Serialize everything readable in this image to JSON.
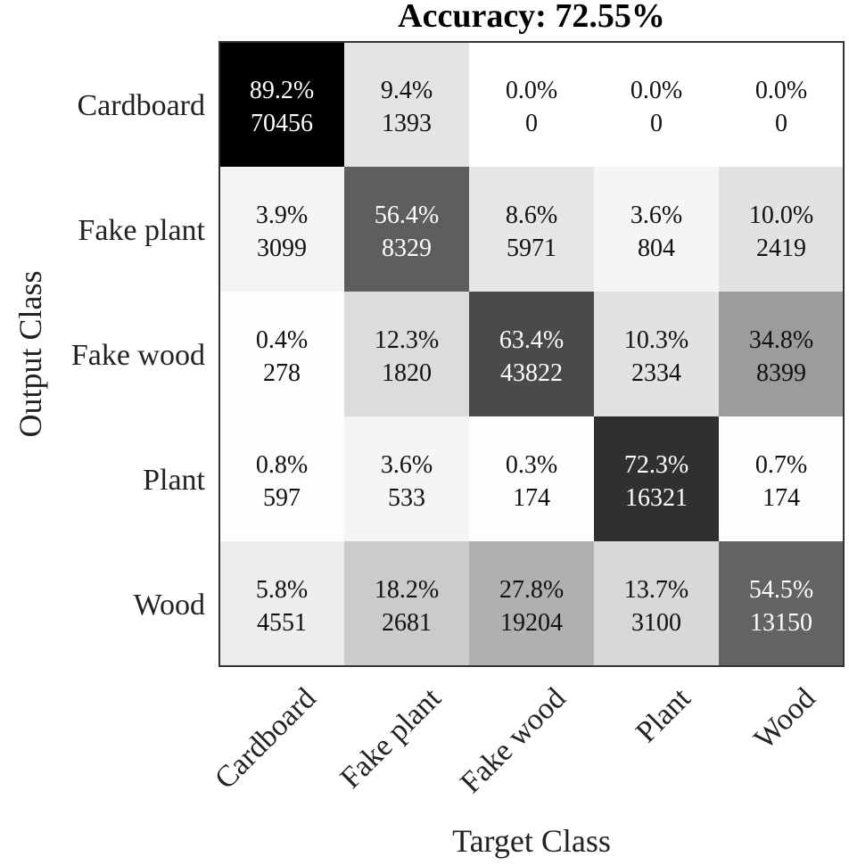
{
  "chart_data": {
    "type": "heatmap",
    "title": "Accuracy: 72.55%",
    "xlabel": "Target Class",
    "ylabel": "Output Class",
    "x_categories": [
      "Cardboard",
      "Fake plant",
      "Fake wood",
      "Plant",
      "Wood"
    ],
    "y_categories": [
      "Cardboard",
      "Fake plant",
      "Fake wood",
      "Plant",
      "Wood"
    ],
    "percent_labels": [
      [
        "89.2%",
        "9.4%",
        "0.0%",
        "0.0%",
        "0.0%"
      ],
      [
        "3.9%",
        "56.4%",
        "8.6%",
        "3.6%",
        "10.0%"
      ],
      [
        "0.4%",
        "12.3%",
        "63.4%",
        "10.3%",
        "34.8%"
      ],
      [
        "0.8%",
        "3.6%",
        "0.3%",
        "72.3%",
        "0.7%"
      ],
      [
        "5.8%",
        "18.2%",
        "27.8%",
        "13.7%",
        "54.5%"
      ]
    ],
    "counts": [
      [
        "70456",
        "1393",
        "0",
        "0",
        "0"
      ],
      [
        "3099",
        "8329",
        "5971",
        "804",
        "2419"
      ],
      [
        "278",
        "1820",
        "43822",
        "2334",
        "8399"
      ],
      [
        "597",
        "533",
        "174",
        "16321",
        "174"
      ],
      [
        "4551",
        "2681",
        "19204",
        "3100",
        "13150"
      ]
    ],
    "percent_values": [
      [
        89.2,
        9.4,
        0.0,
        0.0,
        0.0
      ],
      [
        3.9,
        56.4,
        8.6,
        3.6,
        10.0
      ],
      [
        0.4,
        12.3,
        63.4,
        10.3,
        34.8
      ],
      [
        0.8,
        3.6,
        0.3,
        72.3,
        0.7
      ],
      [
        5.8,
        18.2,
        27.8,
        13.7,
        54.5
      ]
    ],
    "colormap": "gray-reversed",
    "color_range": [
      0,
      89.2
    ],
    "grid": false,
    "legend": "none"
  }
}
